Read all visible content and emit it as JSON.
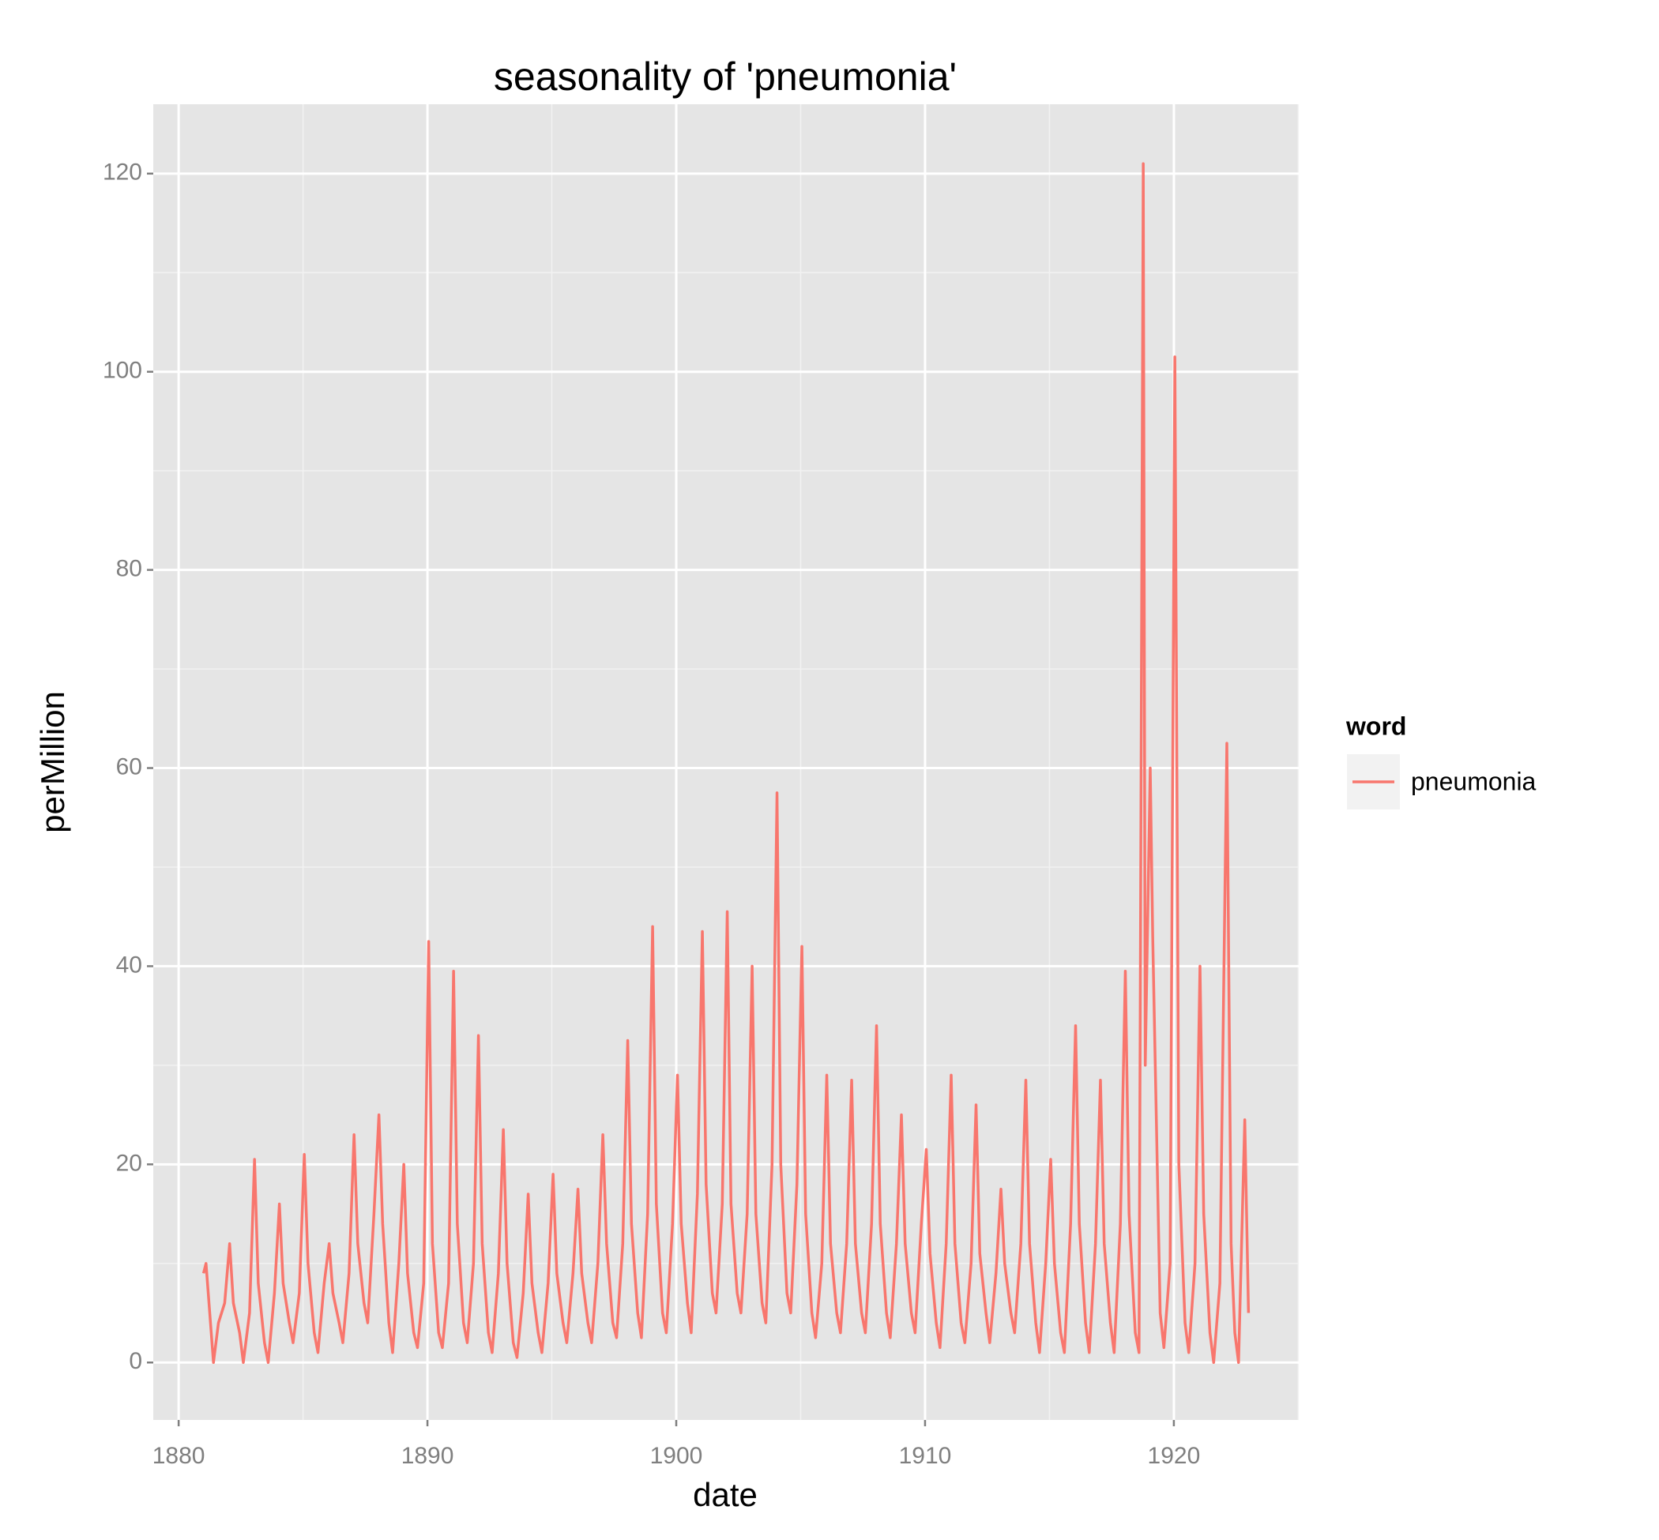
{
  "chart_data": {
    "type": "line",
    "title": "seasonality of 'pneumonia'",
    "xlabel": "date",
    "ylabel": "perMillion",
    "x": [
      1881.0,
      1881.1,
      1881.25,
      1881.4,
      1881.6,
      1881.85,
      1882.05,
      1882.2,
      1882.45,
      1882.6,
      1882.85,
      1883.05,
      1883.2,
      1883.45,
      1883.6,
      1883.85,
      1884.05,
      1884.2,
      1884.45,
      1884.6,
      1884.85,
      1885.05,
      1885.2,
      1885.45,
      1885.6,
      1885.85,
      1886.05,
      1886.2,
      1886.45,
      1886.6,
      1886.85,
      1887.05,
      1887.2,
      1887.45,
      1887.6,
      1887.85,
      1888.05,
      1888.2,
      1888.45,
      1888.6,
      1888.85,
      1889.05,
      1889.2,
      1889.45,
      1889.6,
      1889.85,
      1890.05,
      1890.2,
      1890.45,
      1890.6,
      1890.85,
      1891.05,
      1891.2,
      1891.45,
      1891.6,
      1891.85,
      1892.05,
      1892.2,
      1892.45,
      1892.6,
      1892.85,
      1893.05,
      1893.2,
      1893.45,
      1893.6,
      1893.85,
      1894.05,
      1894.2,
      1894.45,
      1894.6,
      1894.85,
      1895.05,
      1895.2,
      1895.45,
      1895.6,
      1895.85,
      1896.05,
      1896.2,
      1896.45,
      1896.6,
      1896.85,
      1897.05,
      1897.2,
      1897.45,
      1897.6,
      1897.85,
      1898.05,
      1898.2,
      1898.45,
      1898.6,
      1898.85,
      1899.05,
      1899.2,
      1899.45,
      1899.6,
      1899.85,
      1900.05,
      1900.2,
      1900.45,
      1900.6,
      1900.85,
      1901.05,
      1901.2,
      1901.45,
      1901.6,
      1901.85,
      1902.05,
      1902.2,
      1902.45,
      1902.6,
      1902.85,
      1903.05,
      1903.2,
      1903.45,
      1903.6,
      1903.85,
      1904.05,
      1904.2,
      1904.45,
      1904.6,
      1904.85,
      1905.05,
      1905.2,
      1905.45,
      1905.6,
      1905.85,
      1906.05,
      1906.2,
      1906.45,
      1906.6,
      1906.85,
      1907.05,
      1907.2,
      1907.45,
      1907.6,
      1907.85,
      1908.05,
      1908.2,
      1908.45,
      1908.6,
      1908.85,
      1909.05,
      1909.2,
      1909.45,
      1909.6,
      1909.85,
      1910.05,
      1910.2,
      1910.45,
      1910.6,
      1910.85,
      1911.05,
      1911.2,
      1911.45,
      1911.6,
      1911.85,
      1912.05,
      1912.2,
      1912.45,
      1912.6,
      1912.85,
      1913.05,
      1913.2,
      1913.45,
      1913.6,
      1913.85,
      1914.05,
      1914.2,
      1914.45,
      1914.6,
      1914.85,
      1915.05,
      1915.2,
      1915.45,
      1915.6,
      1915.85,
      1916.05,
      1916.2,
      1916.45,
      1916.6,
      1916.85,
      1917.05,
      1917.2,
      1917.45,
      1917.6,
      1917.85,
      1918.05,
      1918.2,
      1918.45,
      1918.6,
      1918.77,
      1918.85,
      1919.05,
      1919.15,
      1919.45,
      1919.6,
      1919.85,
      1920.04,
      1920.2,
      1920.45,
      1920.6,
      1920.85,
      1921.05,
      1921.2,
      1921.45,
      1921.6,
      1921.85,
      1922.13,
      1922.3,
      1922.45,
      1922.6,
      1922.85,
      1923.0
    ],
    "series": [
      {
        "name": "pneumonia",
        "color": "#F8766D",
        "values": [
          9,
          10,
          5,
          0,
          4,
          6,
          12,
          6,
          3,
          0,
          5,
          20.5,
          8,
          2,
          0,
          7,
          16,
          8,
          4,
          2,
          7,
          21,
          10,
          3,
          1,
          8,
          12,
          7,
          4,
          2,
          9,
          23,
          12,
          6,
          4,
          15,
          25,
          14,
          4,
          1,
          10,
          20,
          9,
          3,
          1.5,
          8,
          42.5,
          12,
          3,
          1.5,
          8,
          39.5,
          14,
          4,
          2,
          10,
          33,
          12,
          3,
          1,
          9,
          23.5,
          10,
          2,
          0.5,
          7,
          17,
          8,
          3,
          1,
          8,
          19,
          9,
          4,
          2,
          9,
          17.5,
          9,
          4,
          2,
          10,
          23,
          12,
          4,
          2.5,
          12,
          32.5,
          14,
          5,
          2.5,
          15,
          44,
          16,
          5,
          3,
          14,
          29,
          14,
          6,
          3,
          17,
          43.5,
          18,
          7,
          5,
          16,
          45.5,
          16,
          7,
          5,
          15,
          40,
          15,
          6,
          4,
          20,
          57.5,
          20,
          7,
          5,
          18,
          42,
          15,
          5,
          2.5,
          10,
          29,
          12,
          5,
          3,
          12,
          28.5,
          12,
          5,
          3,
          14,
          34,
          14,
          5,
          2.5,
          12,
          25,
          12,
          5,
          3,
          14,
          21.5,
          11,
          4,
          1.5,
          12,
          29,
          12,
          4,
          2,
          10,
          26,
          11,
          5,
          2,
          9,
          17.5,
          10,
          5,
          3,
          12,
          28.5,
          12,
          4,
          1,
          10,
          20.5,
          10,
          3,
          1,
          14,
          34,
          14,
          4,
          1,
          12,
          28.5,
          12,
          4,
          1,
          14,
          39.5,
          15,
          3,
          1,
          121,
          30,
          60,
          43,
          5,
          1.5,
          10,
          101.5,
          20,
          4,
          1,
          10,
          40,
          15,
          3,
          0,
          8,
          62.5,
          12,
          3,
          0,
          24.5,
          5
        ]
      }
    ],
    "xlim": [
      1878.98,
      1925.02
    ],
    "ylim": [
      -5.8,
      127
    ],
    "xticks": [
      1880,
      1890,
      1900,
      1910,
      1920
    ],
    "yticks": [
      0,
      20,
      40,
      60,
      80,
      100,
      120
    ],
    "grid": true,
    "legend_title": "word",
    "legend": "right"
  }
}
